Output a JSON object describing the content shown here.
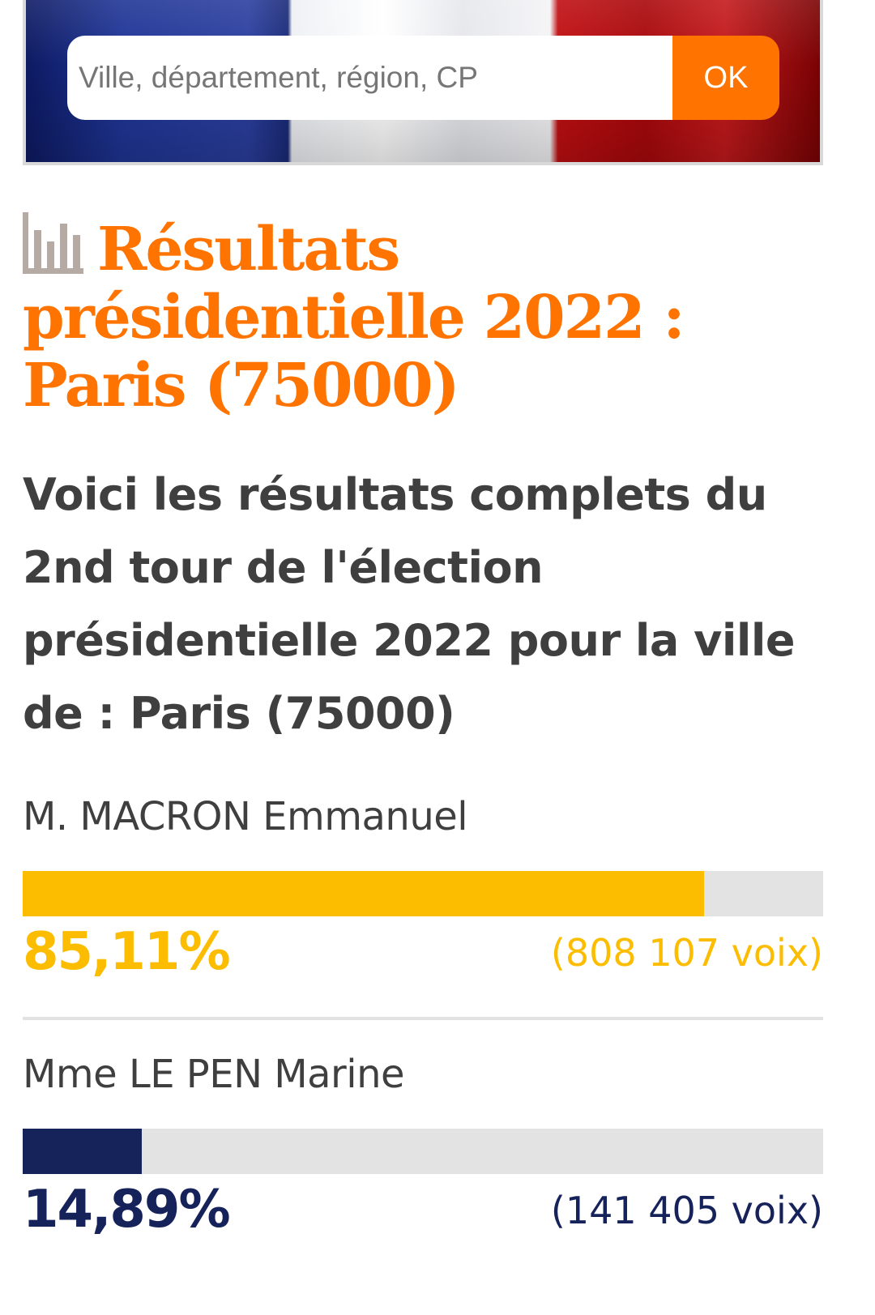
{
  "search": {
    "placeholder": "Ville, département, région, CP",
    "button_label": "OK"
  },
  "colors": {
    "accent": "#ff7300",
    "macron": "#fcbd00",
    "lepen": "#16225a",
    "text": "#3f3f3f",
    "track": "#e3e3e3"
  },
  "title": {
    "icon": "bar-chart-icon",
    "text": "Résultats présidentielle 2022 : Paris (75000)"
  },
  "subtitle": "Voici les résultats complets du 2nd tour de l'élection présidentielle 2022 pour la ville de : Paris (75000)",
  "candidates": [
    {
      "name": "M. MACRON Emmanuel",
      "percent_label": "85,11%",
      "percent": 85.11,
      "votes_label": "(808 107 voix)",
      "color": "#fcbd00"
    },
    {
      "name": "Mme LE PEN Marine",
      "percent_label": "14,89%",
      "percent": 14.89,
      "votes_label": "(141 405 voix)",
      "color": "#16225a"
    }
  ]
}
